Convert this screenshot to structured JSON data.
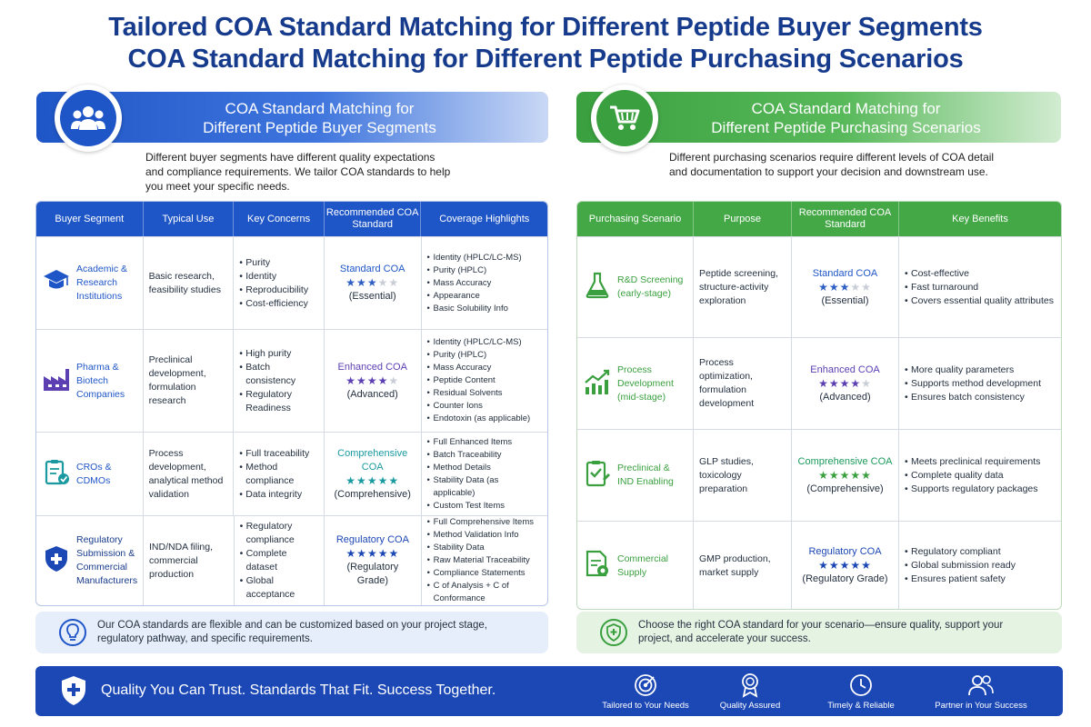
{
  "titles": {
    "line1": "Tailored COA Standard Matching for Different Peptide Buyer Segments",
    "line2": "COA Standard Matching for Different Peptide Purchasing Scenarios"
  },
  "colors": {
    "navy": "#173b8c",
    "blue": "#1f56c7",
    "green": "#3aa03f",
    "star_blue": "#2d5fc4",
    "star_green": "#3aa03f"
  },
  "left_panel": {
    "header_line1": "COA Standard Matching for",
    "header_line2": "Different Peptide Buyer Segments",
    "icon": "users-group-icon",
    "intro": "Different buyer segments have different quality expectations and compliance requirements. We tailor COA standards to help you meet your specific needs.",
    "columns": [
      "Buyer Segment",
      "Typical Use",
      "Key Concerns",
      "Recommended COA Standard",
      "Coverage Highlights"
    ],
    "rows": [
      {
        "icon": "graduation-cap-icon",
        "segment": "Academic & Research Institutions",
        "use": "Basic research, feasibility studies",
        "concerns": [
          "Purity",
          "Identity",
          "Reproducibility",
          "Cost-efficiency"
        ],
        "standard": "Standard COA",
        "rating": 3,
        "level": "(Essential)",
        "coverage": [
          "Identity (HPLC/LC-MS)",
          "Purity (HPLC)",
          "Mass Accuracy",
          "Appearance",
          "Basic Solubility Info"
        ]
      },
      {
        "icon": "factory-icon",
        "segment": "Pharma & Biotech Companies",
        "use": "Preclinical development, formulation research",
        "concerns": [
          "High purity",
          "Batch consistency",
          "Regulatory Readiness"
        ],
        "standard": "Enhanced COA",
        "rating": 4,
        "level": "(Advanced)",
        "coverage": [
          "Identity (HPLC/LC-MS)",
          "Purity (HPLC)",
          "Mass Accuracy",
          "Peptide Content",
          "Residual Solvents",
          "Counter Ions",
          "Endotoxin (as applicable)"
        ]
      },
      {
        "icon": "clipboard-check-icon",
        "segment": "CROs & CDMOs",
        "use": "Process development, analytical method validation",
        "concerns": [
          "Full traceability",
          "Method compliance",
          "Data integrity"
        ],
        "standard": "Comprehensive COA",
        "rating": 5,
        "level": "(Comprehensive)",
        "coverage": [
          "Full Enhanced Items",
          "Batch Traceability",
          "Method Details",
          "Stability Data (as applicable)",
          "Custom Test Items"
        ]
      },
      {
        "icon": "shield-plus-icon",
        "segment": "Regulatory Submission & Commercial Manufacturers",
        "use": "IND/NDA filing, commercial production",
        "concerns": [
          "Regulatory compliance",
          "Complete dataset",
          "Global acceptance"
        ],
        "standard": "Regulatory COA",
        "rating": 5,
        "level": "(Regulatory Grade)",
        "coverage": [
          "Full Comprehensive Items",
          "Method Validation Info",
          "Stability Data",
          "Raw Material Traceability",
          "Compliance Statements",
          "C of Analysis + C of Conformance"
        ]
      }
    ],
    "note": "Our COA standards are flexible and can be customized based on your project stage, regulatory pathway, and specific requirements.",
    "note_icon": "lightbulb-icon"
  },
  "right_panel": {
    "header_line1": "COA Standard Matching for",
    "header_line2": "Different Peptide Purchasing Scenarios",
    "icon": "shopping-cart-icon",
    "intro": "Different purchasing scenarios require different levels of COA detail and documentation to support your decision and downstream use.",
    "columns": [
      "Purchasing Scenario",
      "Purpose",
      "Recommended COA Standard",
      "Key Benefits"
    ],
    "rows": [
      {
        "icon": "flask-icon",
        "scenario": "R&D Screening (early-stage)",
        "purpose": "Peptide screening, structure-activity exploration",
        "standard": "Standard COA",
        "rating": 3,
        "level": "(Essential)",
        "benefits": [
          "Cost-effective",
          "Fast turnaround",
          "Covers essential quality attributes"
        ]
      },
      {
        "icon": "growth-chart-icon",
        "scenario": "Process Development (mid-stage)",
        "purpose": "Process optimization, formulation development",
        "standard": "Enhanced COA",
        "rating": 4,
        "level": "(Advanced)",
        "benefits": [
          "More quality parameters",
          "Supports method development",
          "Ensures batch consistency"
        ]
      },
      {
        "icon": "checklist-icon",
        "scenario": "Preclinical & IND Enabling",
        "purpose": "GLP studies, toxicology preparation",
        "standard": "Comprehensive COA",
        "rating": 5,
        "level": "(Comprehensive)",
        "benefits": [
          "Meets preclinical requirements",
          "Complete quality data",
          "Supports regulatory packages"
        ]
      },
      {
        "icon": "document-seal-icon",
        "scenario": "Commercial Supply",
        "purpose": "GMP production, market supply",
        "standard": "Regulatory COA",
        "rating": 5,
        "level": "(Regulatory Grade)",
        "benefits": [
          "Regulatory compliant",
          "Global submission ready",
          "Ensures patient safety"
        ]
      }
    ],
    "note": "Choose the right COA standard for your scenario—ensure quality, support your project, and accelerate your success.",
    "note_icon": "shield-plus-icon"
  },
  "footer": {
    "tagline": "Quality You Can Trust.  Standards That Fit.  Success Together.",
    "shield_icon": "shield-plus-icon",
    "items": [
      {
        "icon": "target-icon",
        "label": "Tailored to Your Needs"
      },
      {
        "icon": "award-ribbon-icon",
        "label": "Quality Assured"
      },
      {
        "icon": "clock-icon",
        "label": "Timely & Reliable"
      },
      {
        "icon": "people-icon",
        "label": "Partner in Your Success"
      }
    ]
  }
}
